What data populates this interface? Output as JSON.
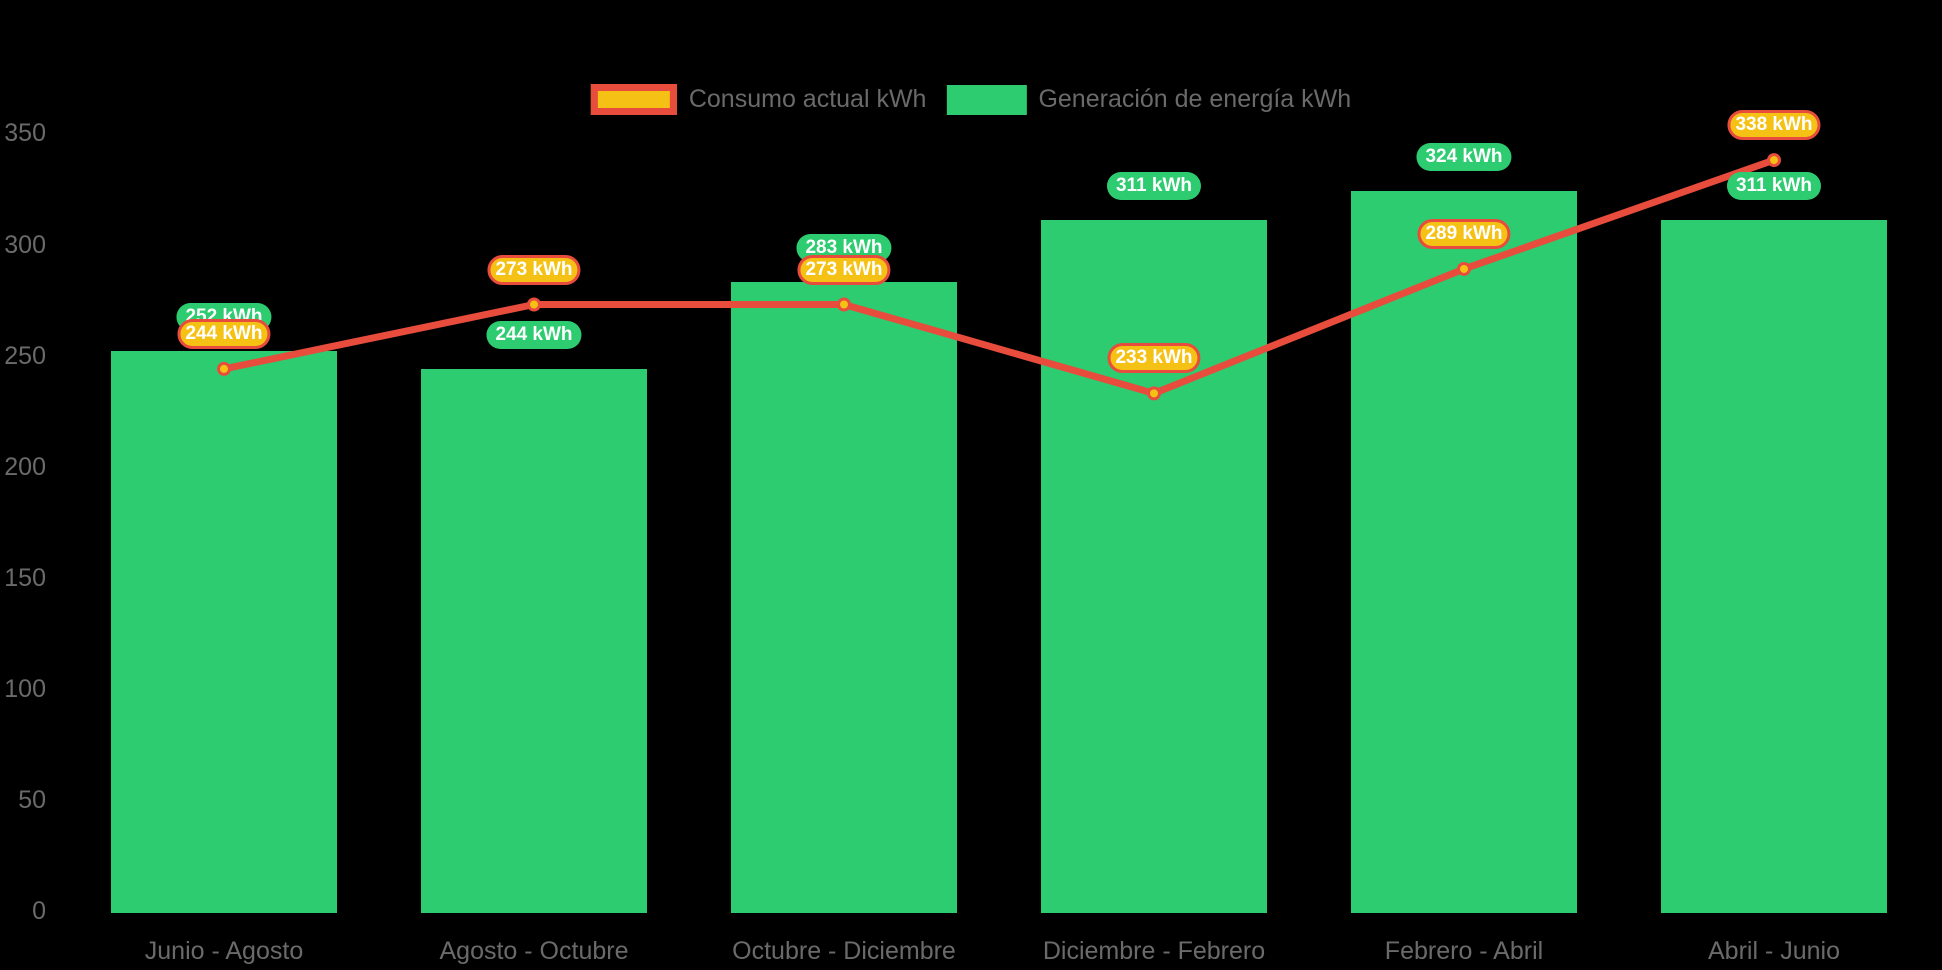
{
  "chart_data": {
    "type": "combo-bar-line",
    "categories": [
      "Junio - Agosto",
      "Agosto - Octubre",
      "Octubre - Diciembre",
      "Diciembre - Febrero",
      "Febrero - Abril",
      "Abril - Junio"
    ],
    "series": [
      {
        "name": "Consumo actual kWh",
        "type": "line",
        "color": "#E74C3C",
        "marker_color": "#F5C114",
        "values": [
          244,
          273,
          273,
          233,
          289,
          338
        ]
      },
      {
        "name": "Generación de energía kWh",
        "type": "bar",
        "color": "#2ECC71",
        "values": [
          252,
          244,
          283,
          311,
          324,
          311
        ]
      }
    ],
    "unit": "kWh",
    "y_ticks": [
      0,
      50,
      100,
      150,
      200,
      250,
      300,
      350
    ],
    "ylim": [
      0,
      350
    ],
    "grid": false,
    "legend_position": "top-center",
    "background": "#000000",
    "axis_text_color": "#6A6A6A",
    "data_label_text_color": "#FFFFFF"
  }
}
